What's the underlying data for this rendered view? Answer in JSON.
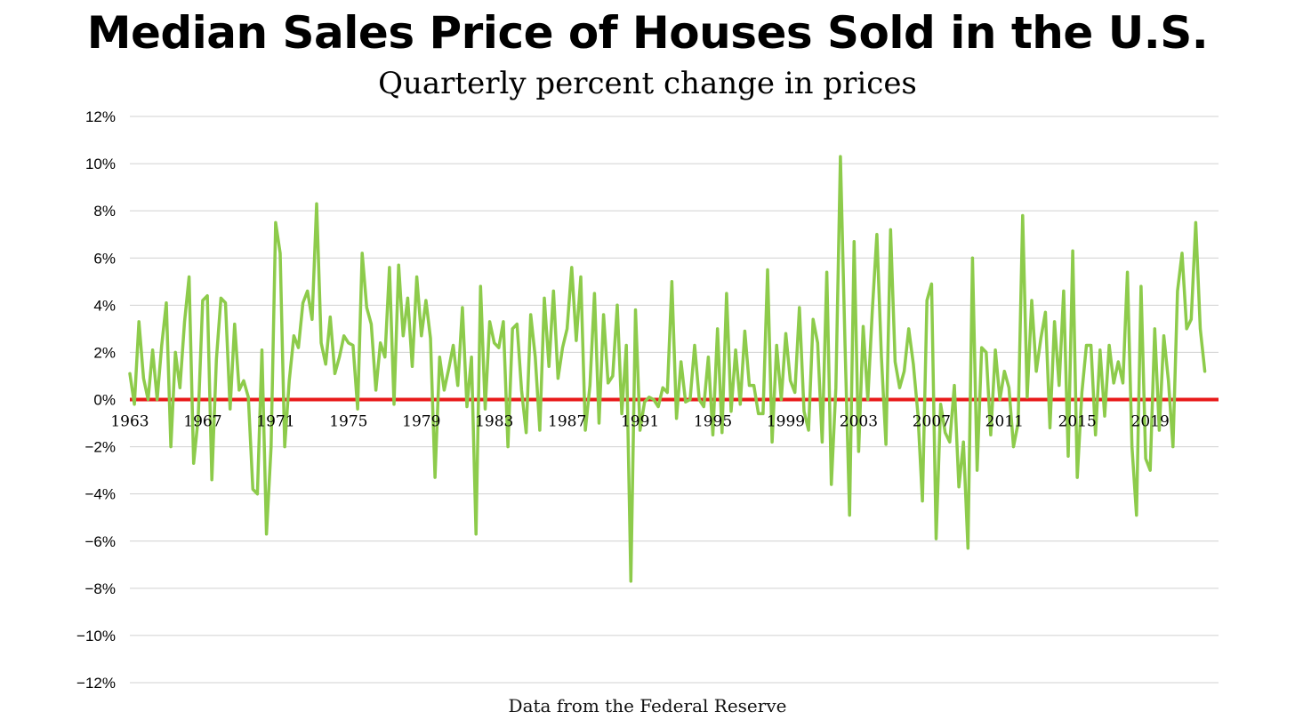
{
  "chart_data": {
    "type": "line",
    "title": "Median Sales Price of Houses Sold in the U.S.",
    "subtitle": "Quarterly percent change in prices",
    "source": "Data from the Federal Reserve",
    "xlabel": "",
    "ylabel": "",
    "grid": true,
    "legend": "none",
    "ylim": [
      -12,
      12
    ],
    "yticks": [
      12,
      10,
      8,
      6,
      4,
      2,
      0,
      -2,
      -4,
      -6,
      -8,
      -10,
      -12
    ],
    "ytick_labels": [
      "12%",
      "10%",
      "8%",
      "6%",
      "4%",
      "2%",
      "0%",
      "−2%",
      "−4%",
      "−6%",
      "−8%",
      "−10%",
      "−12%"
    ],
    "xticks": [
      1963,
      1967,
      1971,
      1975,
      1979,
      1983,
      1987,
      1991,
      1995,
      1999,
      2003,
      2007,
      2011,
      2015,
      2019
    ],
    "xlim": [
      1963,
      2022.75
    ],
    "colors": {
      "series": "#8dcb4b",
      "zero_line": "#e81a1a",
      "grid": "#d0d0d0"
    },
    "series": [
      {
        "name": "Quarterly percent change",
        "x_start": 1963,
        "x_step": 0.25,
        "values": [
          1.1,
          -0.2,
          3.3,
          0.9,
          0.0,
          2.1,
          0.0,
          2.3,
          4.1,
          -2.0,
          2.0,
          0.5,
          3.3,
          5.2,
          -2.7,
          -0.8,
          4.2,
          4.4,
          -3.4,
          1.7,
          4.3,
          4.1,
          -0.4,
          3.2,
          0.4,
          0.8,
          0.1,
          -3.8,
          -4.0,
          2.1,
          -5.7,
          -2.0,
          7.5,
          6.2,
          -2.0,
          0.8,
          2.7,
          2.2,
          4.1,
          4.6,
          3.4,
          8.3,
          2.4,
          1.5,
          3.5,
          1.1,
          1.8,
          2.7,
          2.4,
          2.3,
          -0.4,
          6.2,
          3.9,
          3.2,
          0.4,
          2.4,
          1.8,
          5.6,
          -0.2,
          5.7,
          2.7,
          4.3,
          1.4,
          5.2,
          2.7,
          4.2,
          2.6,
          -3.3,
          1.8,
          0.4,
          1.3,
          2.3,
          0.6,
          3.9,
          -0.3,
          1.8,
          -5.7,
          4.8,
          -0.4,
          3.3,
          2.4,
          2.2,
          3.3,
          -2.0,
          3.0,
          3.2,
          0.4,
          -1.4,
          3.6,
          1.8,
          -1.3,
          4.3,
          1.4,
          4.6,
          0.9,
          2.2,
          3.0,
          5.6,
          2.5,
          5.2,
          -1.3,
          0.6,
          4.5,
          -1.0,
          3.6,
          0.7,
          1.0,
          4.0,
          -0.6,
          2.3,
          -7.7,
          3.8,
          -1.3,
          -0.1,
          0.1,
          0.0,
          -0.3,
          0.5,
          0.3,
          5.0,
          -0.8,
          1.6,
          -0.1,
          0.0,
          2.3,
          0.0,
          -0.3,
          1.8,
          -1.5,
          3.0,
          -1.4,
          4.5,
          -0.5,
          2.1,
          -0.2,
          2.9,
          0.6,
          0.6,
          -0.6,
          -0.6,
          5.5,
          -1.8,
          2.3,
          0.0,
          2.8,
          0.8,
          0.3,
          3.9,
          -0.5,
          -1.3,
          3.4,
          2.4,
          -1.8,
          5.4,
          -3.6,
          0.5,
          10.3,
          2.3,
          -4.9,
          6.7,
          -2.2,
          3.1,
          0.0,
          3.8,
          7.0,
          1.8,
          -1.9,
          7.2,
          1.6,
          0.5,
          1.2,
          3.0,
          1.5,
          -0.6,
          -4.3,
          4.2,
          4.9,
          -5.9,
          -0.2,
          -1.4,
          -1.8,
          0.6,
          -3.7,
          -1.8,
          -6.3,
          6.0,
          -3.0,
          2.2,
          2.0,
          -1.5,
          2.1,
          0.0,
          1.2,
          0.5,
          -2.0,
          -1.0,
          7.8,
          0.1,
          4.2,
          1.2,
          2.6,
          3.7,
          -1.2,
          3.3,
          0.6,
          4.6,
          -2.4,
          6.3,
          -3.3,
          0.3,
          2.3,
          2.3,
          -1.5,
          2.1,
          -0.7,
          2.3,
          0.7,
          1.6,
          0.7,
          5.4,
          -2.0,
          -4.9,
          4.8,
          -2.5,
          -3.0,
          3.0,
          -1.3,
          2.7,
          0.8,
          -2.0,
          4.6,
          6.2,
          3.0,
          3.4,
          7.5,
          3.0,
          1.2
        ]
      }
    ]
  }
}
